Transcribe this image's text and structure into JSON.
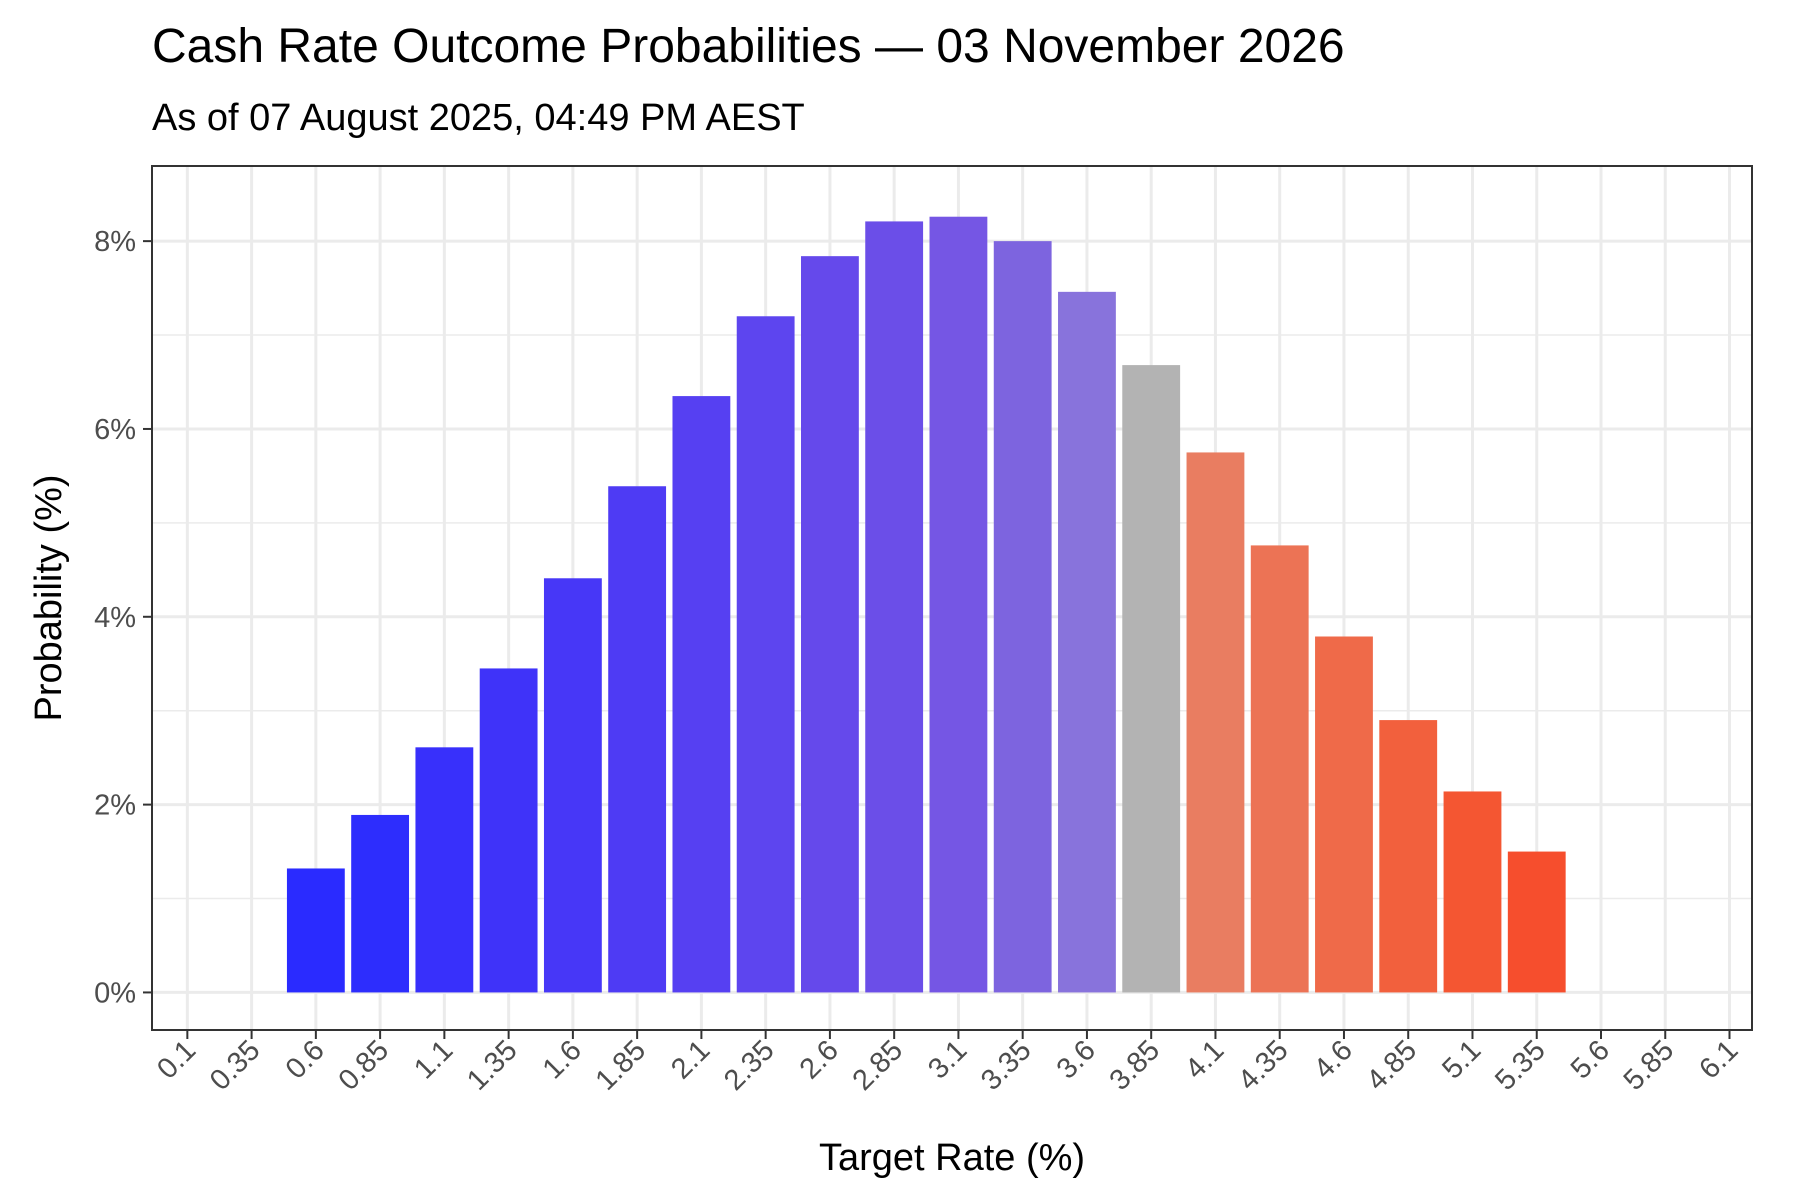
{
  "chart_data": {
    "type": "bar",
    "title": "Cash Rate Outcome Probabilities — 03 November 2026",
    "subtitle": "As of 07 August 2025, 04:49 PM AEST",
    "xlabel": "Target Rate (%)",
    "ylabel": "Probability (%)",
    "categories": [
      "0.1",
      "0.35",
      "0.6",
      "0.85",
      "1.1",
      "1.35",
      "1.6",
      "1.85",
      "2.1",
      "2.35",
      "2.6",
      "2.85",
      "3.1",
      "3.35",
      "3.6",
      "3.85",
      "4.1",
      "4.35",
      "4.6",
      "4.85",
      "5.1",
      "5.35",
      "5.6",
      "5.85",
      "6.1"
    ],
    "values": [
      0,
      0,
      1.32,
      1.89,
      2.61,
      3.45,
      4.41,
      5.39,
      6.35,
      7.2,
      7.84,
      8.21,
      8.26,
      8.0,
      7.46,
      6.68,
      5.75,
      4.76,
      3.79,
      2.9,
      2.14,
      1.5,
      0,
      0,
      0
    ],
    "colors": [
      "#2a2bff",
      "#2a2bff",
      "#2a2bff",
      "#2d2dfd",
      "#3830fb",
      "#3f33f9",
      "#4737f7",
      "#4e3bf4",
      "#5640f2",
      "#5d45ef",
      "#6549eb",
      "#6b4ee8",
      "#7556e4",
      "#7d64df",
      "#8873dc",
      "#b3b3b3",
      "#e97d61",
      "#ec7355",
      "#ef6a49",
      "#f2603d",
      "#f45632",
      "#f64e2d",
      "#f64e2d",
      "#f64e2d",
      "#f64e2d"
    ],
    "ylim": [
      0,
      8.5
    ],
    "yticks": [
      0,
      2,
      4,
      6,
      8
    ],
    "ytick_labels": [
      "0%",
      "2%",
      "4%",
      "6%",
      "8%"
    ],
    "grid": true,
    "legend": "none"
  }
}
